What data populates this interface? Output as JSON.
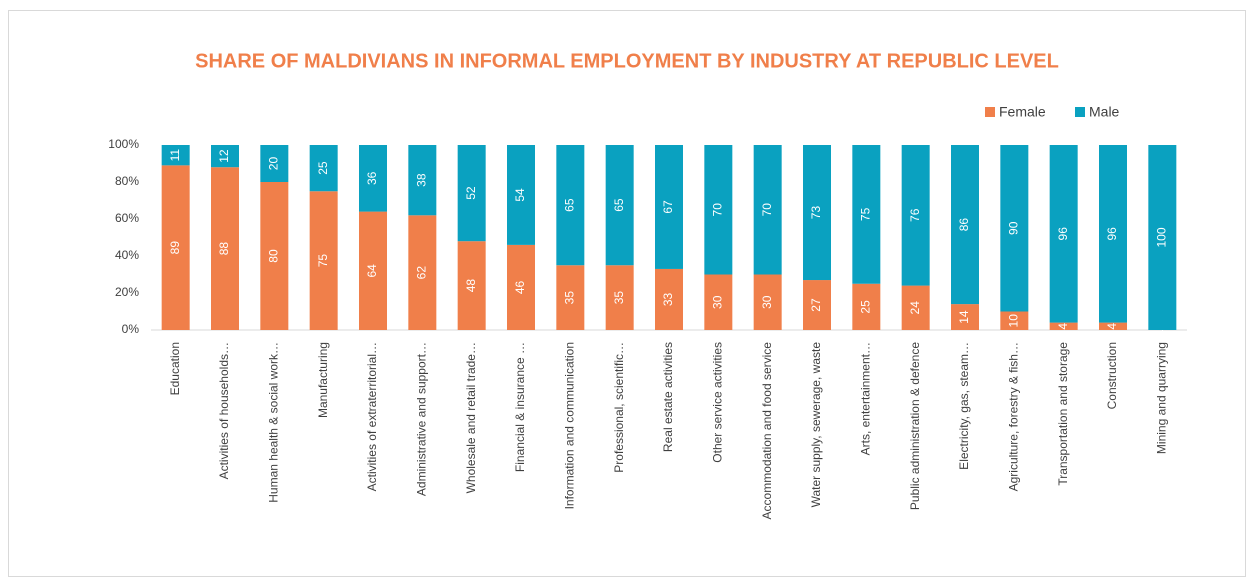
{
  "chart_data": {
    "type": "stacked_bar",
    "title": "SHARE OF MALDIVIANS IN INFORMAL EMPLOYMENT BY INDUSTRY AT REPUBLIC LEVEL",
    "categories": [
      "Education",
      "Activities of households…",
      "Human health & social work…",
      "Manufacturing",
      "Activities of extraterritorial…",
      "Administrative and support…",
      "Wholesale and retail trade…",
      "Financial & insurance …",
      "Information and communication",
      "Professional, scientific…",
      "Real estate activities",
      "Other service activities",
      "Accommodation and food service",
      "Water supply, sewerage, waste",
      "Arts, entertainment…",
      "Public administration & defence",
      "Electricity, gas, steam…",
      "Agriculture, forestry & fish…",
      "Transportation and storage",
      "Construction",
      "Mining and quarrying"
    ],
    "series": [
      {
        "name": "Female",
        "color": "#f07f4a",
        "values": [
          89,
          88,
          80,
          75,
          64,
          62,
          48,
          46,
          35,
          35,
          33,
          30,
          30,
          27,
          25,
          24,
          14,
          10,
          4,
          4,
          0
        ],
        "value_labels": [
          "89",
          "88",
          "80",
          "75",
          "64",
          "62",
          "48",
          "46",
          "35",
          "35",
          "33",
          "30",
          "30",
          "27",
          "25",
          "24",
          "14",
          "10",
          "4",
          "4",
          "-"
        ]
      },
      {
        "name": "Male",
        "color": "#0aa1c0",
        "values": [
          11,
          12,
          20,
          25,
          36,
          38,
          52,
          54,
          65,
          65,
          67,
          70,
          70,
          73,
          75,
          76,
          86,
          90,
          96,
          96,
          100
        ]
      }
    ],
    "ylim": [
      0,
      100
    ],
    "yticks": [
      {
        "value": 0,
        "label": "0%"
      },
      {
        "value": 20,
        "label": "20%"
      },
      {
        "value": 40,
        "label": "40%"
      },
      {
        "value": 60,
        "label": "60%"
      },
      {
        "value": 80,
        "label": "80%"
      },
      {
        "value": 100,
        "label": "100%"
      }
    ],
    "legend": "top-right"
  }
}
